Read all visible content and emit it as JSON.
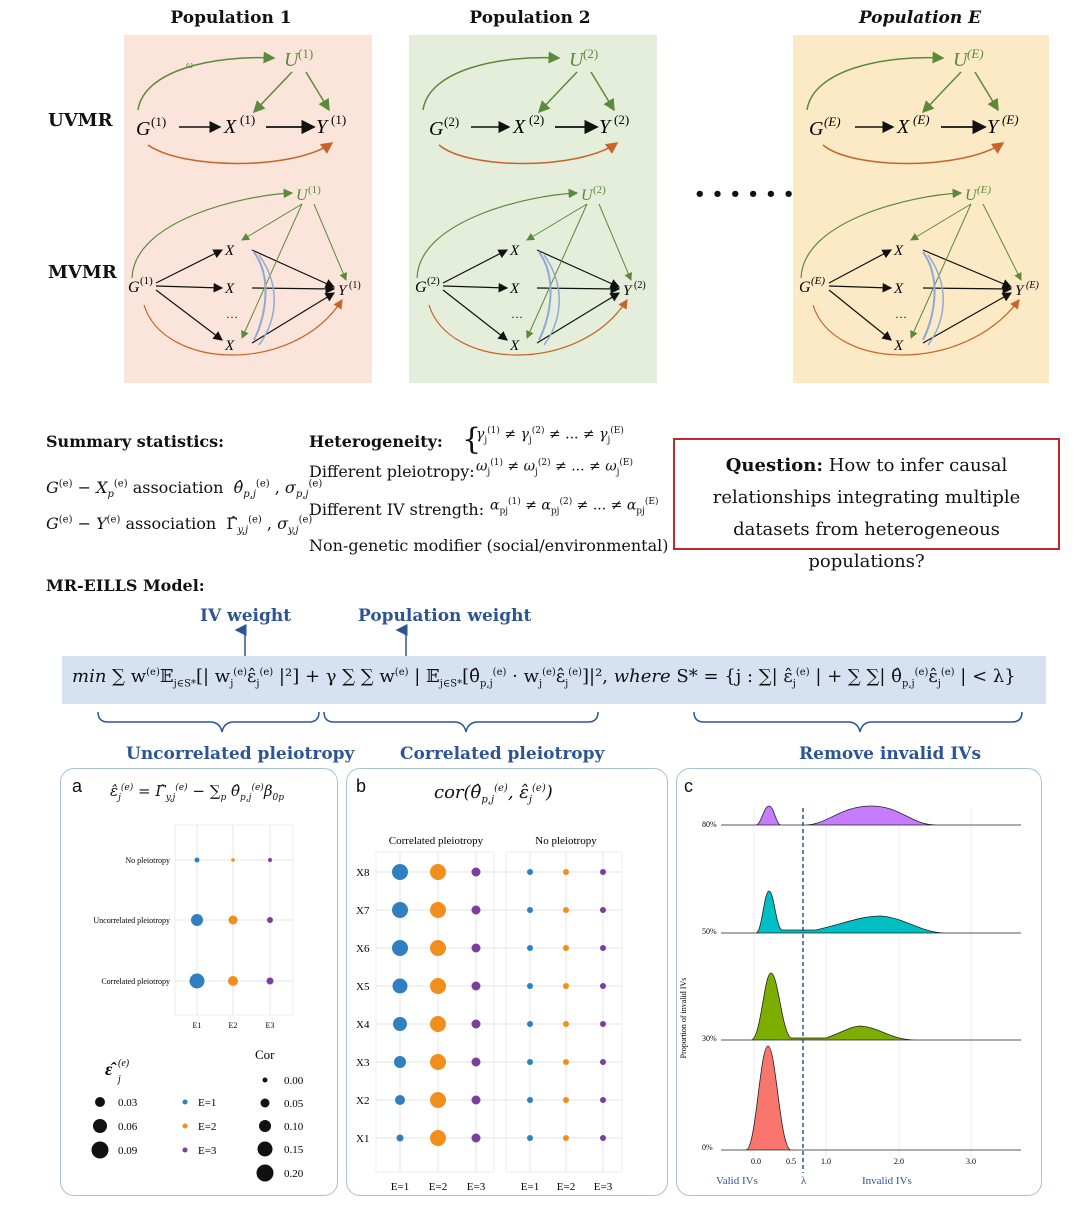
{
  "populations": [
    {
      "title": "Population 1",
      "sup": "(1)",
      "color": "#fbe7dc",
      "accent": "#5b8a3a"
    },
    {
      "title": "Population 2",
      "sup": "(2)",
      "color": "#e6efdc",
      "accent": "#5b8a3a"
    },
    {
      "title": "Population E",
      "sup": "(E)",
      "color": "#fcebc9",
      "accent": "#5b8a3a"
    }
  ],
  "rows": {
    "uvmr": "UVMR",
    "mvmr": "MVMR"
  },
  "ellipsis": "• • • • • •",
  "summary": {
    "title": "Summary statistics:",
    "line1_label": "association",
    "line2_label": "association"
  },
  "heterogeneity": {
    "title": "Heterogeneity:",
    "pleio": "Different pleiotropy:",
    "iv": "Different IV strength:",
    "modifier": "Non-genetic modifier (social/environmental)"
  },
  "question": {
    "bold": "Question:",
    "text": "How to infer causal relationships integrating multiple datasets from heterogeneous populations?"
  },
  "model": {
    "title": "MR-EILLS Model:",
    "iv_weight": "IV weight",
    "pop_weight": "Population weight",
    "uncorrelated": "Uncorrelated pleiotropy",
    "correlated": "Correlated pleiotropy",
    "remove": "Remove invalid IVs"
  },
  "panel_a": {
    "letter": "a",
    "rows": [
      "No pleiotropy",
      "Uncorrelated pleiotropy",
      "Correlated pleiotropy"
    ],
    "cols": [
      "E1",
      "E2",
      "E3"
    ],
    "legend_size_values": [
      "0.03",
      "0.06",
      "0.09"
    ],
    "legend_e": [
      "E=1",
      "E=2",
      "E=3"
    ],
    "cor_title": "Cor",
    "cor_values": [
      "0.00",
      "0.05",
      "0.10",
      "0.15",
      "0.20"
    ],
    "colors": [
      "#2f7fc1",
      "#f28e1c",
      "#7b3fa0"
    ]
  },
  "panel_b": {
    "letter": "b",
    "left_title": "Correlated pleiotropy",
    "right_title": "No pleiotropy",
    "rows": [
      "X8",
      "X7",
      "X6",
      "X5",
      "X4",
      "X3",
      "X2",
      "X1"
    ],
    "cols": [
      "E=1",
      "E=2",
      "E=3"
    ]
  },
  "panel_c": {
    "letter": "c",
    "ylabel": "Proportion of invalid IVs",
    "levels": [
      "80%",
      "50%",
      "30%",
      "0%"
    ],
    "xticks": [
      "0.0",
      "0.5",
      "1.0",
      "2.0",
      "3.0"
    ],
    "valid": "Valid IVs",
    "lambda": "λ",
    "invalid": "Invalid IVs",
    "colors": [
      "#c77cff",
      "#00bfc4",
      "#7cae00",
      "#f8766d"
    ]
  }
}
